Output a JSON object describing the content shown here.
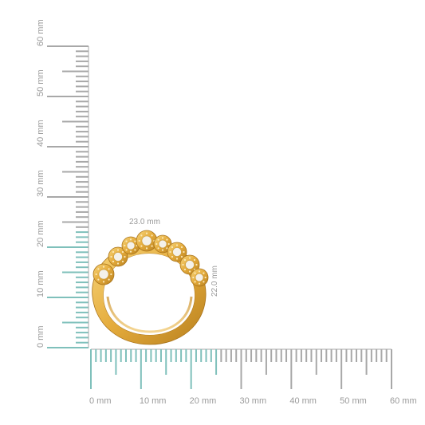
{
  "ruler": {
    "unit": "mm",
    "x_labels": [
      "0 mm",
      "10 mm",
      "20 mm",
      "30 mm",
      "40 mm",
      "50 mm",
      "60 mm"
    ],
    "y_labels": [
      "0 mm",
      "10 mm",
      "20 mm",
      "30 mm",
      "40 mm",
      "50 mm",
      "60 mm"
    ],
    "highlight_color": "#7fc0bb",
    "tick_color": "#a8a8a8",
    "label_color": "#9a9a9a"
  },
  "dimensions": {
    "width_label": "23.0 mm",
    "height_label": "22.0 mm"
  },
  "ring": {
    "metal_color": "#e8b54a",
    "metal_dark": "#b9811f",
    "stone_color": "#f4f1ea"
  }
}
